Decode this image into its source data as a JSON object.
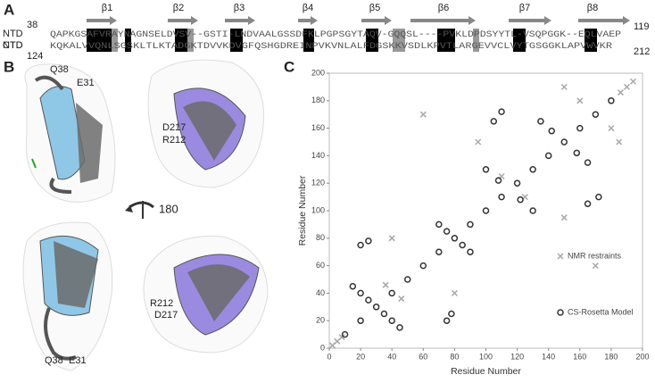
{
  "panels": {
    "a": "A",
    "b": "B",
    "c": "C"
  },
  "alignment": {
    "ntd": {
      "name": "NTD",
      "start": "38",
      "end": "119",
      "sequence": "QAPKGSAFVRAYNAGNSELDVSV--GSTI-LNDVAALGSSDFKLPGPSGYTAQV-GQQSL----PVKLDPDSYYTL-VSQPGGK--EQLVAEP"
    },
    "ctd": {
      "name": "CTD",
      "start": "124",
      "end": "212",
      "sequence": "KQKALVVQNLSGSKLTLKTADGKTDVVKDVGFQSHGDREINPVKVNLALFDGSKKVSDLKPVTLARGEVVCLVYTGSGGKLAPVWVKR"
    },
    "strands": [
      "β1",
      "β2",
      "β3",
      "β4",
      "β5",
      "β6",
      "β7",
      "β8"
    ]
  },
  "structures": {
    "top_left": [
      "Q38",
      "E31"
    ],
    "top_right": [
      "D217",
      "R212"
    ],
    "rotation": "180",
    "bottom_left": [
      "Q38",
      "E31"
    ],
    "bottom_right": [
      "R212",
      "D217"
    ]
  },
  "chart_data": {
    "type": "scatter",
    "xlabel": "Residue Number",
    "ylabel": "Residue Number",
    "xlim": [
      0,
      200
    ],
    "ylim": [
      0,
      200
    ],
    "xticks": [
      0,
      20,
      40,
      60,
      80,
      100,
      120,
      140,
      160,
      180,
      200
    ],
    "yticks": [
      0,
      20,
      40,
      60,
      80,
      100,
      120,
      140,
      160,
      180,
      200
    ],
    "series": [
      {
        "name": "NMR restraints",
        "color": "#a8a8a8",
        "marker": "x",
        "x": [
          2,
          5,
          8,
          186,
          190,
          194,
          150,
          185,
          40,
          80,
          95,
          150,
          180,
          160,
          36,
          46,
          110,
          125,
          60,
          170
        ],
        "y": [
          2,
          5,
          8,
          186,
          190,
          194,
          190,
          150,
          80,
          40,
          150,
          95,
          160,
          180,
          46,
          36,
          125,
          110,
          170,
          60
        ]
      },
      {
        "name": "CS-Rosetta Model",
        "color": "#333333",
        "marker": "o",
        "x": [
          10,
          20,
          30,
          40,
          50,
          60,
          70,
          80,
          90,
          100,
          110,
          120,
          130,
          140,
          150,
          160,
          170,
          180,
          15,
          20,
          25,
          35,
          40,
          45,
          70,
          75,
          85,
          90,
          100,
          108,
          122,
          130,
          135,
          142,
          158,
          165,
          20,
          25,
          75,
          78,
          105,
          110,
          165,
          172
        ],
        "y": [
          10,
          20,
          30,
          40,
          50,
          60,
          70,
          80,
          90,
          100,
          110,
          120,
          130,
          140,
          150,
          160,
          170,
          180,
          45,
          40,
          35,
          25,
          20,
          15,
          90,
          85,
          75,
          70,
          130,
          122,
          108,
          100,
          165,
          158,
          142,
          135,
          75,
          78,
          20,
          25,
          165,
          172,
          105,
          110
        ]
      }
    ]
  }
}
